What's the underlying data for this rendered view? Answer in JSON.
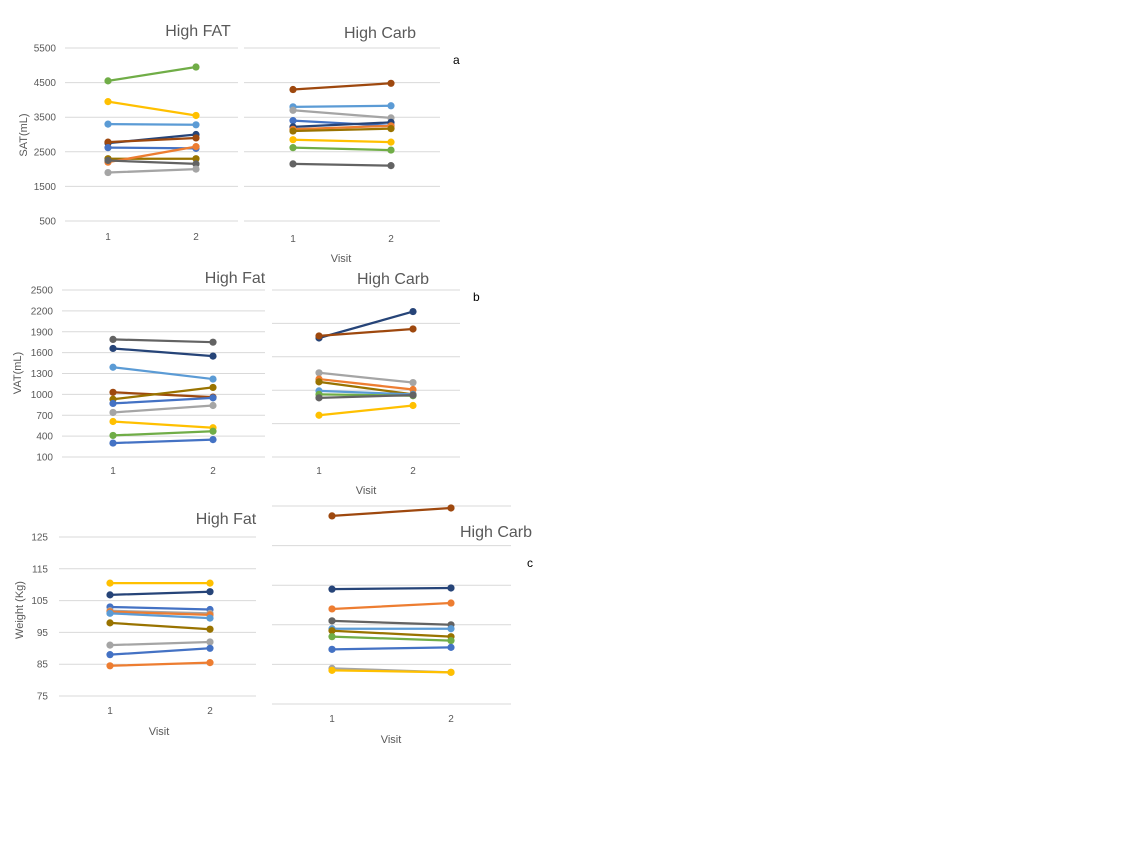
{
  "colors": [
    "#4472c4",
    "#ed7d31",
    "#a5a5a5",
    "#ffc000",
    "#5b9bd5",
    "#70ad47",
    "#264478",
    "#9e480e",
    "#636363",
    "#997300"
  ],
  "panel_labels": {
    "a": "a",
    "b": "b",
    "c": "c"
  },
  "chart_data": [
    {
      "id": "sat-high-fat",
      "type": "line",
      "title": "High FAT",
      "xlabel": "",
      "ylabel": "SAT(mL)",
      "categories": [
        "1",
        "2"
      ],
      "ylim": [
        500,
        5500
      ],
      "yticks": [
        500,
        1500,
        2500,
        3500,
        4500,
        5500
      ],
      "grid": true,
      "series": [
        {
          "color": "#70ad47",
          "values": [
            4550,
            4950
          ]
        },
        {
          "color": "#ffc000",
          "values": [
            3950,
            3550
          ]
        },
        {
          "color": "#5b9bd5",
          "values": [
            3300,
            3280
          ]
        },
        {
          "color": "#264478",
          "values": [
            2750,
            3000
          ]
        },
        {
          "color": "#9e480e",
          "values": [
            2780,
            2900
          ]
        },
        {
          "color": "#4472c4",
          "values": [
            2620,
            2600
          ]
        },
        {
          "color": "#997300",
          "values": [
            2300,
            2300
          ]
        },
        {
          "color": "#ed7d31",
          "values": [
            2200,
            2650
          ]
        },
        {
          "color": "#636363",
          "values": [
            2250,
            2150
          ]
        },
        {
          "color": "#a5a5a5",
          "values": [
            1900,
            2000
          ]
        }
      ]
    },
    {
      "id": "sat-high-carb",
      "type": "line",
      "title": "High Carb",
      "xlabel": "Visit",
      "ylabel": "",
      "categories": [
        "1",
        "2"
      ],
      "ylim": [
        500,
        5500
      ],
      "yticks": [],
      "grid": true,
      "series": [
        {
          "color": "#9e480e",
          "values": [
            4300,
            4480
          ]
        },
        {
          "color": "#5b9bd5",
          "values": [
            3800,
            3830
          ]
        },
        {
          "color": "#a5a5a5",
          "values": [
            3700,
            3480
          ]
        },
        {
          "color": "#4472c4",
          "values": [
            3400,
            3250
          ]
        },
        {
          "color": "#264478",
          "values": [
            3220,
            3350
          ]
        },
        {
          "color": "#ed7d31",
          "values": [
            3150,
            3250
          ]
        },
        {
          "color": "#997300",
          "values": [
            3100,
            3170
          ]
        },
        {
          "color": "#ffc000",
          "values": [
            2850,
            2780
          ]
        },
        {
          "color": "#70ad47",
          "values": [
            2620,
            2550
          ]
        },
        {
          "color": "#636363",
          "values": [
            2150,
            2100
          ]
        }
      ]
    },
    {
      "id": "vat-high-fat",
      "type": "line",
      "title": "High Fat",
      "xlabel": "",
      "ylabel": "VAT(mL)",
      "categories": [
        "1",
        "2"
      ],
      "ylim": [
        100,
        2500
      ],
      "yticks": [
        100,
        400,
        700,
        1000,
        1300,
        1600,
        1900,
        2200,
        2500
      ],
      "grid": true,
      "series": [
        {
          "color": "#636363",
          "values": [
            1790,
            1750
          ]
        },
        {
          "color": "#264478",
          "values": [
            1660,
            1550
          ]
        },
        {
          "color": "#5b9bd5",
          "values": [
            1390,
            1220
          ]
        },
        {
          "color": "#9e480e",
          "values": [
            1030,
            960
          ]
        },
        {
          "color": "#997300",
          "values": [
            930,
            1100
          ]
        },
        {
          "color": "#4472c4",
          "values": [
            870,
            950
          ]
        },
        {
          "color": "#a5a5a5",
          "values": [
            740,
            840
          ]
        },
        {
          "color": "#ffc000",
          "values": [
            610,
            520
          ]
        },
        {
          "color": "#70ad47",
          "values": [
            410,
            470
          ]
        },
        {
          "color": "#4472c4",
          "values": [
            300,
            350
          ]
        }
      ]
    },
    {
      "id": "vat-high-carb",
      "type": "line",
      "title": "High Carb",
      "xlabel": "Visit",
      "ylabel": "",
      "categories": [
        "1",
        "2"
      ],
      "ylim": [
        100,
        2500
      ],
      "yticks": [],
      "grid": true,
      "series": [
        {
          "color": "#264478",
          "values": [
            1810,
            2190
          ]
        },
        {
          "color": "#9e480e",
          "values": [
            1840,
            1940
          ]
        },
        {
          "color": "#a5a5a5",
          "values": [
            1310,
            1170
          ]
        },
        {
          "color": "#ed7d31",
          "values": [
            1220,
            1070
          ]
        },
        {
          "color": "#997300",
          "values": [
            1180,
            1000
          ]
        },
        {
          "color": "#5b9bd5",
          "values": [
            1050,
            1000
          ]
        },
        {
          "color": "#70ad47",
          "values": [
            1000,
            980
          ]
        },
        {
          "color": "#636363",
          "values": [
            950,
            990
          ]
        },
        {
          "color": "#ffc000",
          "values": [
            700,
            840
          ]
        }
      ]
    },
    {
      "id": "weight-high-fat",
      "type": "line",
      "title": "High Fat",
      "xlabel": "Visit",
      "ylabel": "Weight (Kg)",
      "categories": [
        "1",
        "2"
      ],
      "ylim": [
        75,
        125
      ],
      "yticks": [
        75,
        85,
        95,
        105,
        115,
        125
      ],
      "grid": true,
      "series": [
        {
          "color": "#ffc000",
          "values": [
            110.5,
            110.5
          ]
        },
        {
          "color": "#264478",
          "values": [
            106.8,
            107.8
          ]
        },
        {
          "color": "#4472c4",
          "values": [
            103.0,
            102.2
          ]
        },
        {
          "color": "#a5a5a5",
          "values": [
            101.8,
            101.0
          ]
        },
        {
          "color": "#ed7d31",
          "values": [
            101.5,
            100.5
          ]
        },
        {
          "color": "#5b9bd5",
          "values": [
            101.0,
            99.5
          ]
        },
        {
          "color": "#997300",
          "values": [
            98.0,
            96.0
          ]
        },
        {
          "color": "#a5a5a5",
          "values": [
            91.0,
            92.0
          ]
        },
        {
          "color": "#4472c4",
          "values": [
            88.0,
            90.0
          ]
        },
        {
          "color": "#ed7d31",
          "values": [
            84.5,
            85.5
          ]
        }
      ]
    },
    {
      "id": "weight-high-carb",
      "type": "line",
      "title": "High Carb",
      "xlabel": "Visit",
      "ylabel": "",
      "categories": [
        "1",
        "2"
      ],
      "ylim": [
        80,
        130
      ],
      "yticks": [],
      "grid": true,
      "series": [
        {
          "color": "#9e480e",
          "values": [
            127.5,
            129.5
          ]
        },
        {
          "color": "#264478",
          "values": [
            109.0,
            109.3
          ]
        },
        {
          "color": "#ed7d31",
          "values": [
            104.0,
            105.5
          ]
        },
        {
          "color": "#636363",
          "values": [
            101.0,
            100.0
          ]
        },
        {
          "color": "#5b9bd5",
          "values": [
            99.0,
            99.0
          ]
        },
        {
          "color": "#997300",
          "values": [
            98.5,
            97.0
          ]
        },
        {
          "color": "#70ad47",
          "values": [
            97.0,
            96.0
          ]
        },
        {
          "color": "#4472c4",
          "values": [
            93.8,
            94.3
          ]
        },
        {
          "color": "#a5a5a5",
          "values": [
            89.0,
            88.0
          ]
        },
        {
          "color": "#ffc000",
          "values": [
            88.5,
            88.0
          ]
        }
      ]
    }
  ]
}
